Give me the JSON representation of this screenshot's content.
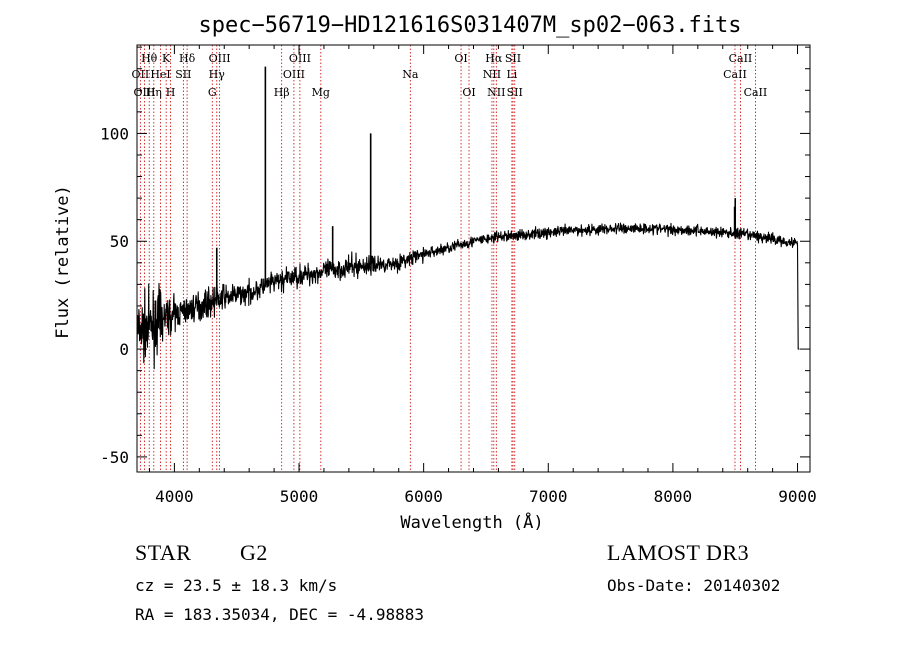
{
  "chart_data": {
    "type": "line",
    "title": "spec−56719−HD121616S031407M_sp02−063.fits",
    "xlabel": "Wavelength (Å)",
    "ylabel": "Flux (relative)",
    "xlim": [
      3700,
      9100
    ],
    "ylim": [
      -57,
      141
    ],
    "xticks": [
      4000,
      5000,
      6000,
      7000,
      8000,
      9000
    ],
    "yticks": [
      -50,
      0,
      50,
      100
    ],
    "continuum_knots": [
      [
        3700,
        8
      ],
      [
        3800,
        10
      ],
      [
        3900,
        14
      ],
      [
        4000,
        16
      ],
      [
        4200,
        20
      ],
      [
        4400,
        24
      ],
      [
        4600,
        26
      ],
      [
        4800,
        31
      ],
      [
        5000,
        34
      ],
      [
        5200,
        36
      ],
      [
        5400,
        38
      ],
      [
        5600,
        39
      ],
      [
        5800,
        40
      ],
      [
        6000,
        44
      ],
      [
        6200,
        47
      ],
      [
        6400,
        50
      ],
      [
        6600,
        52
      ],
      [
        6800,
        53
      ],
      [
        7000,
        54
      ],
      [
        7200,
        55
      ],
      [
        7400,
        55.5
      ],
      [
        7600,
        56
      ],
      [
        7800,
        56
      ],
      [
        8000,
        55.5
      ],
      [
        8200,
        55
      ],
      [
        8400,
        54
      ],
      [
        8600,
        53
      ],
      [
        8800,
        51
      ],
      [
        9000,
        49
      ]
    ],
    "emission_spikes": [
      [
        4730,
        131
      ],
      [
        5270,
        57
      ],
      [
        5575,
        100
      ],
      [
        4340,
        47
      ],
      [
        8495,
        66
      ],
      [
        8500,
        70
      ]
    ],
    "tail": [
      [
        9000,
        49
      ],
      [
        9005,
        0
      ],
      [
        9015,
        0
      ]
    ],
    "lines": [
      {
        "label": "Hθ",
        "wave": 3798,
        "row": 1
      },
      {
        "label": "OII",
        "wave": 3727,
        "row": 2
      },
      {
        "label": "OIII",
        "wave": 3760,
        "row": 3
      },
      {
        "label": "K",
        "wave": 3934,
        "row": 1
      },
      {
        "label": "HeI",
        "wave": 3889,
        "row": 2
      },
      {
        "label": "Hη",
        "wave": 3835,
        "row": 3
      },
      {
        "label": "SII",
        "wave": 4072,
        "row": 2
      },
      {
        "label": "H",
        "wave": 3969,
        "row": 3
      },
      {
        "label": "Hδ",
        "wave": 4102,
        "row": 1
      },
      {
        "label": "OIII",
        "wave": 4363,
        "row": 1
      },
      {
        "label": "Hγ",
        "wave": 4340,
        "row": 2
      },
      {
        "label": "G",
        "wave": 4304,
        "row": 3
      },
      {
        "label": "Hβ",
        "wave": 4861,
        "row": 3
      },
      {
        "label": "OIII",
        "wave": 5007,
        "row": 1
      },
      {
        "label": "OIII",
        "wave": 4959,
        "row": 2
      },
      {
        "label": "Mg",
        "wave": 5175,
        "row": 3
      },
      {
        "label": "Na",
        "wave": 5893,
        "row": 2
      },
      {
        "label": "OI",
        "wave": 6300,
        "row": 1
      },
      {
        "label": "OI",
        "wave": 6364,
        "row": 3
      },
      {
        "label": "Hα",
        "wave": 6563,
        "row": 1
      },
      {
        "label": "NII",
        "wave": 6548,
        "row": 2
      },
      {
        "label": "NII",
        "wave": 6583,
        "row": 3
      },
      {
        "label": "SII",
        "wave": 6717,
        "row": 1
      },
      {
        "label": "Li",
        "wave": 6708,
        "row": 2
      },
      {
        "label": "SII",
        "wave": 6731,
        "row": 3
      },
      {
        "label": "CaII",
        "wave": 8542,
        "row": 1
      },
      {
        "label": "CaII",
        "wave": 8498,
        "row": 2
      },
      {
        "label": "CaII",
        "wave": 8662,
        "row": 3
      }
    ]
  },
  "info": {
    "object_class": "STAR",
    "subclass": "G2",
    "survey": "LAMOST DR3",
    "cz": "cz = 23.5 ± 18.3 km/s",
    "obs_date": "Obs-Date: 20140302",
    "coords": "RA = 183.35034, DEC =  -4.98883"
  },
  "colors": {
    "axis": "#000000",
    "spectrum": "#000000",
    "line_marker": "#cc0000"
  }
}
